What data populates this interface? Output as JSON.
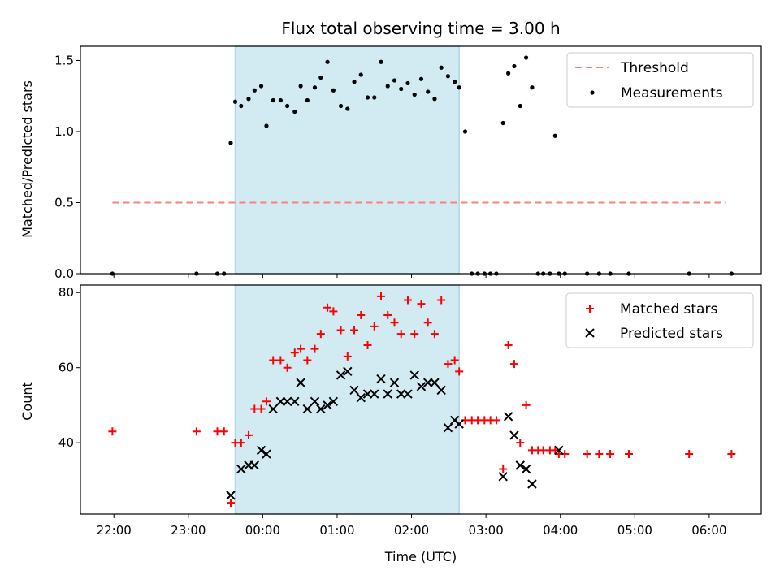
{
  "chart_data": {
    "title": "Flux total observing time = 3.00 h",
    "xlabel": "Time (UTC)",
    "x_tick_labels": [
      "22:00",
      "23:00",
      "00:00",
      "01:00",
      "02:00",
      "03:00",
      "04:00",
      "05:00",
      "06:00"
    ],
    "x_ticks_hours": [
      22,
      23,
      24,
      25,
      26,
      27,
      28,
      29,
      30
    ],
    "xlim_hours": [
      21.55,
      30.7
    ],
    "shaded_span_hours": [
      23.63,
      26.64
    ],
    "colors": {
      "shade": "#add8e6",
      "threshold": "#ff7f7f",
      "matched": "#ff0000",
      "predicted": "#000000",
      "measurements": "#000000"
    },
    "panels": [
      {
        "type": "scatter",
        "ylabel": "Matched/Predicted stars",
        "ylim": [
          0,
          1.6
        ],
        "y_ticks": [
          0.0,
          0.5,
          1.0,
          1.5
        ],
        "y_tick_labels": [
          "0.0",
          "0.5",
          "1.0",
          "1.5"
        ],
        "legend_position": "top-right",
        "threshold": {
          "name": "Threshold",
          "value": 0.5,
          "x_range_hours": [
            21.98,
            30.23
          ]
        },
        "measurements": {
          "name": "Measurements",
          "x": [
            21.98,
            23.11,
            23.39,
            23.48,
            23.57,
            23.63,
            23.71,
            23.81,
            23.89,
            23.98,
            24.05,
            24.14,
            24.24,
            24.33,
            24.43,
            24.51,
            24.6,
            24.7,
            24.78,
            24.87,
            24.95,
            25.05,
            25.14,
            25.23,
            25.32,
            25.41,
            25.5,
            25.59,
            25.68,
            25.77,
            25.86,
            25.95,
            26.04,
            26.13,
            26.22,
            26.31,
            26.4,
            26.49,
            26.58,
            26.64,
            26.72,
            26.81,
            26.89,
            26.98,
            27.06,
            27.14,
            27.23,
            27.3,
            27.38,
            27.46,
            27.54,
            27.62,
            27.7,
            27.77,
            27.86,
            27.93,
            27.98,
            28.06,
            28.36,
            28.52,
            28.67,
            28.92,
            29.73,
            30.3
          ],
          "y": [
            0.0,
            0.0,
            0.0,
            0.0,
            0.92,
            1.21,
            1.18,
            1.23,
            1.29,
            1.32,
            1.04,
            1.22,
            1.22,
            1.18,
            1.14,
            1.32,
            1.22,
            1.31,
            1.38,
            1.49,
            1.29,
            1.18,
            1.16,
            1.35,
            1.4,
            1.24,
            1.24,
            1.49,
            1.32,
            1.36,
            1.3,
            1.34,
            1.26,
            1.37,
            1.28,
            1.23,
            1.45,
            1.39,
            1.35,
            1.31,
            1.0,
            0.0,
            0.0,
            0.0,
            0.0,
            0.0,
            1.06,
            1.41,
            1.46,
            1.18,
            1.52,
            1.31,
            0.0,
            0.0,
            0.0,
            0.97,
            0.0,
            0.0,
            0.0,
            0.0,
            0.0,
            0.0,
            0.0,
            0.0
          ]
        }
      },
      {
        "type": "scatter",
        "ylabel": "Count",
        "ylim": [
          21,
          82
        ],
        "y_ticks": [
          40,
          60,
          80
        ],
        "y_tick_labels": [
          "40",
          "60",
          "80"
        ],
        "legend_position": "top-right",
        "series": [
          {
            "name": "Matched stars",
            "marker": "plus",
            "x": [
              21.98,
              23.11,
              23.39,
              23.48,
              23.57,
              23.63,
              23.71,
              23.81,
              23.89,
              23.98,
              24.05,
              24.14,
              24.24,
              24.33,
              24.43,
              24.51,
              24.6,
              24.7,
              24.78,
              24.87,
              24.95,
              25.05,
              25.14,
              25.23,
              25.32,
              25.41,
              25.5,
              25.59,
              25.68,
              25.77,
              25.86,
              25.95,
              26.04,
              26.13,
              26.22,
              26.31,
              26.4,
              26.49,
              26.58,
              26.64,
              26.72,
              26.81,
              26.89,
              26.98,
              27.06,
              27.14,
              27.23,
              27.3,
              27.38,
              27.46,
              27.54,
              27.62,
              27.7,
              27.77,
              27.86,
              27.93,
              27.98,
              28.06,
              28.36,
              28.52,
              28.67,
              28.92,
              29.73,
              30.3
            ],
            "y": [
              43,
              43,
              43,
              43,
              24,
              40,
              40,
              42,
              49,
              49,
              51,
              62,
              62,
              60,
              64,
              65,
              62,
              65,
              69,
              76,
              75,
              70,
              63,
              70,
              74,
              66,
              71,
              79,
              74,
              72,
              69,
              78,
              69,
              77,
              72,
              69,
              78,
              61,
              62,
              59,
              46,
              46,
              46,
              46,
              46,
              46,
              33,
              66,
              61,
              40,
              50,
              38,
              38,
              38,
              38,
              38,
              37,
              37,
              37,
              37,
              37,
              37,
              37,
              37
            ]
          },
          {
            "name": "Predicted stars",
            "marker": "x",
            "x": [
              23.57,
              23.71,
              23.81,
              23.89,
              23.98,
              24.05,
              24.14,
              24.24,
              24.33,
              24.43,
              24.51,
              24.6,
              24.7,
              24.78,
              24.87,
              24.95,
              25.05,
              25.14,
              25.23,
              25.32,
              25.41,
              25.5,
              25.59,
              25.68,
              25.77,
              25.86,
              25.95,
              26.04,
              26.13,
              26.22,
              26.31,
              26.4,
              26.49,
              26.58,
              26.64,
              27.23,
              27.3,
              27.38,
              27.46,
              27.54,
              27.62,
              27.98
            ],
            "y": [
              26,
              33,
              34,
              34,
              38,
              37,
              49,
              51,
              51,
              51,
              56,
              49,
              51,
              49,
              50,
              51,
              58,
              59,
              54,
              52,
              53,
              53,
              57,
              53,
              56,
              53,
              53,
              58,
              55,
              56,
              56,
              54,
              44,
              46,
              45,
              31,
              47,
              42,
              34,
              33,
              29,
              38
            ]
          }
        ]
      }
    ]
  }
}
